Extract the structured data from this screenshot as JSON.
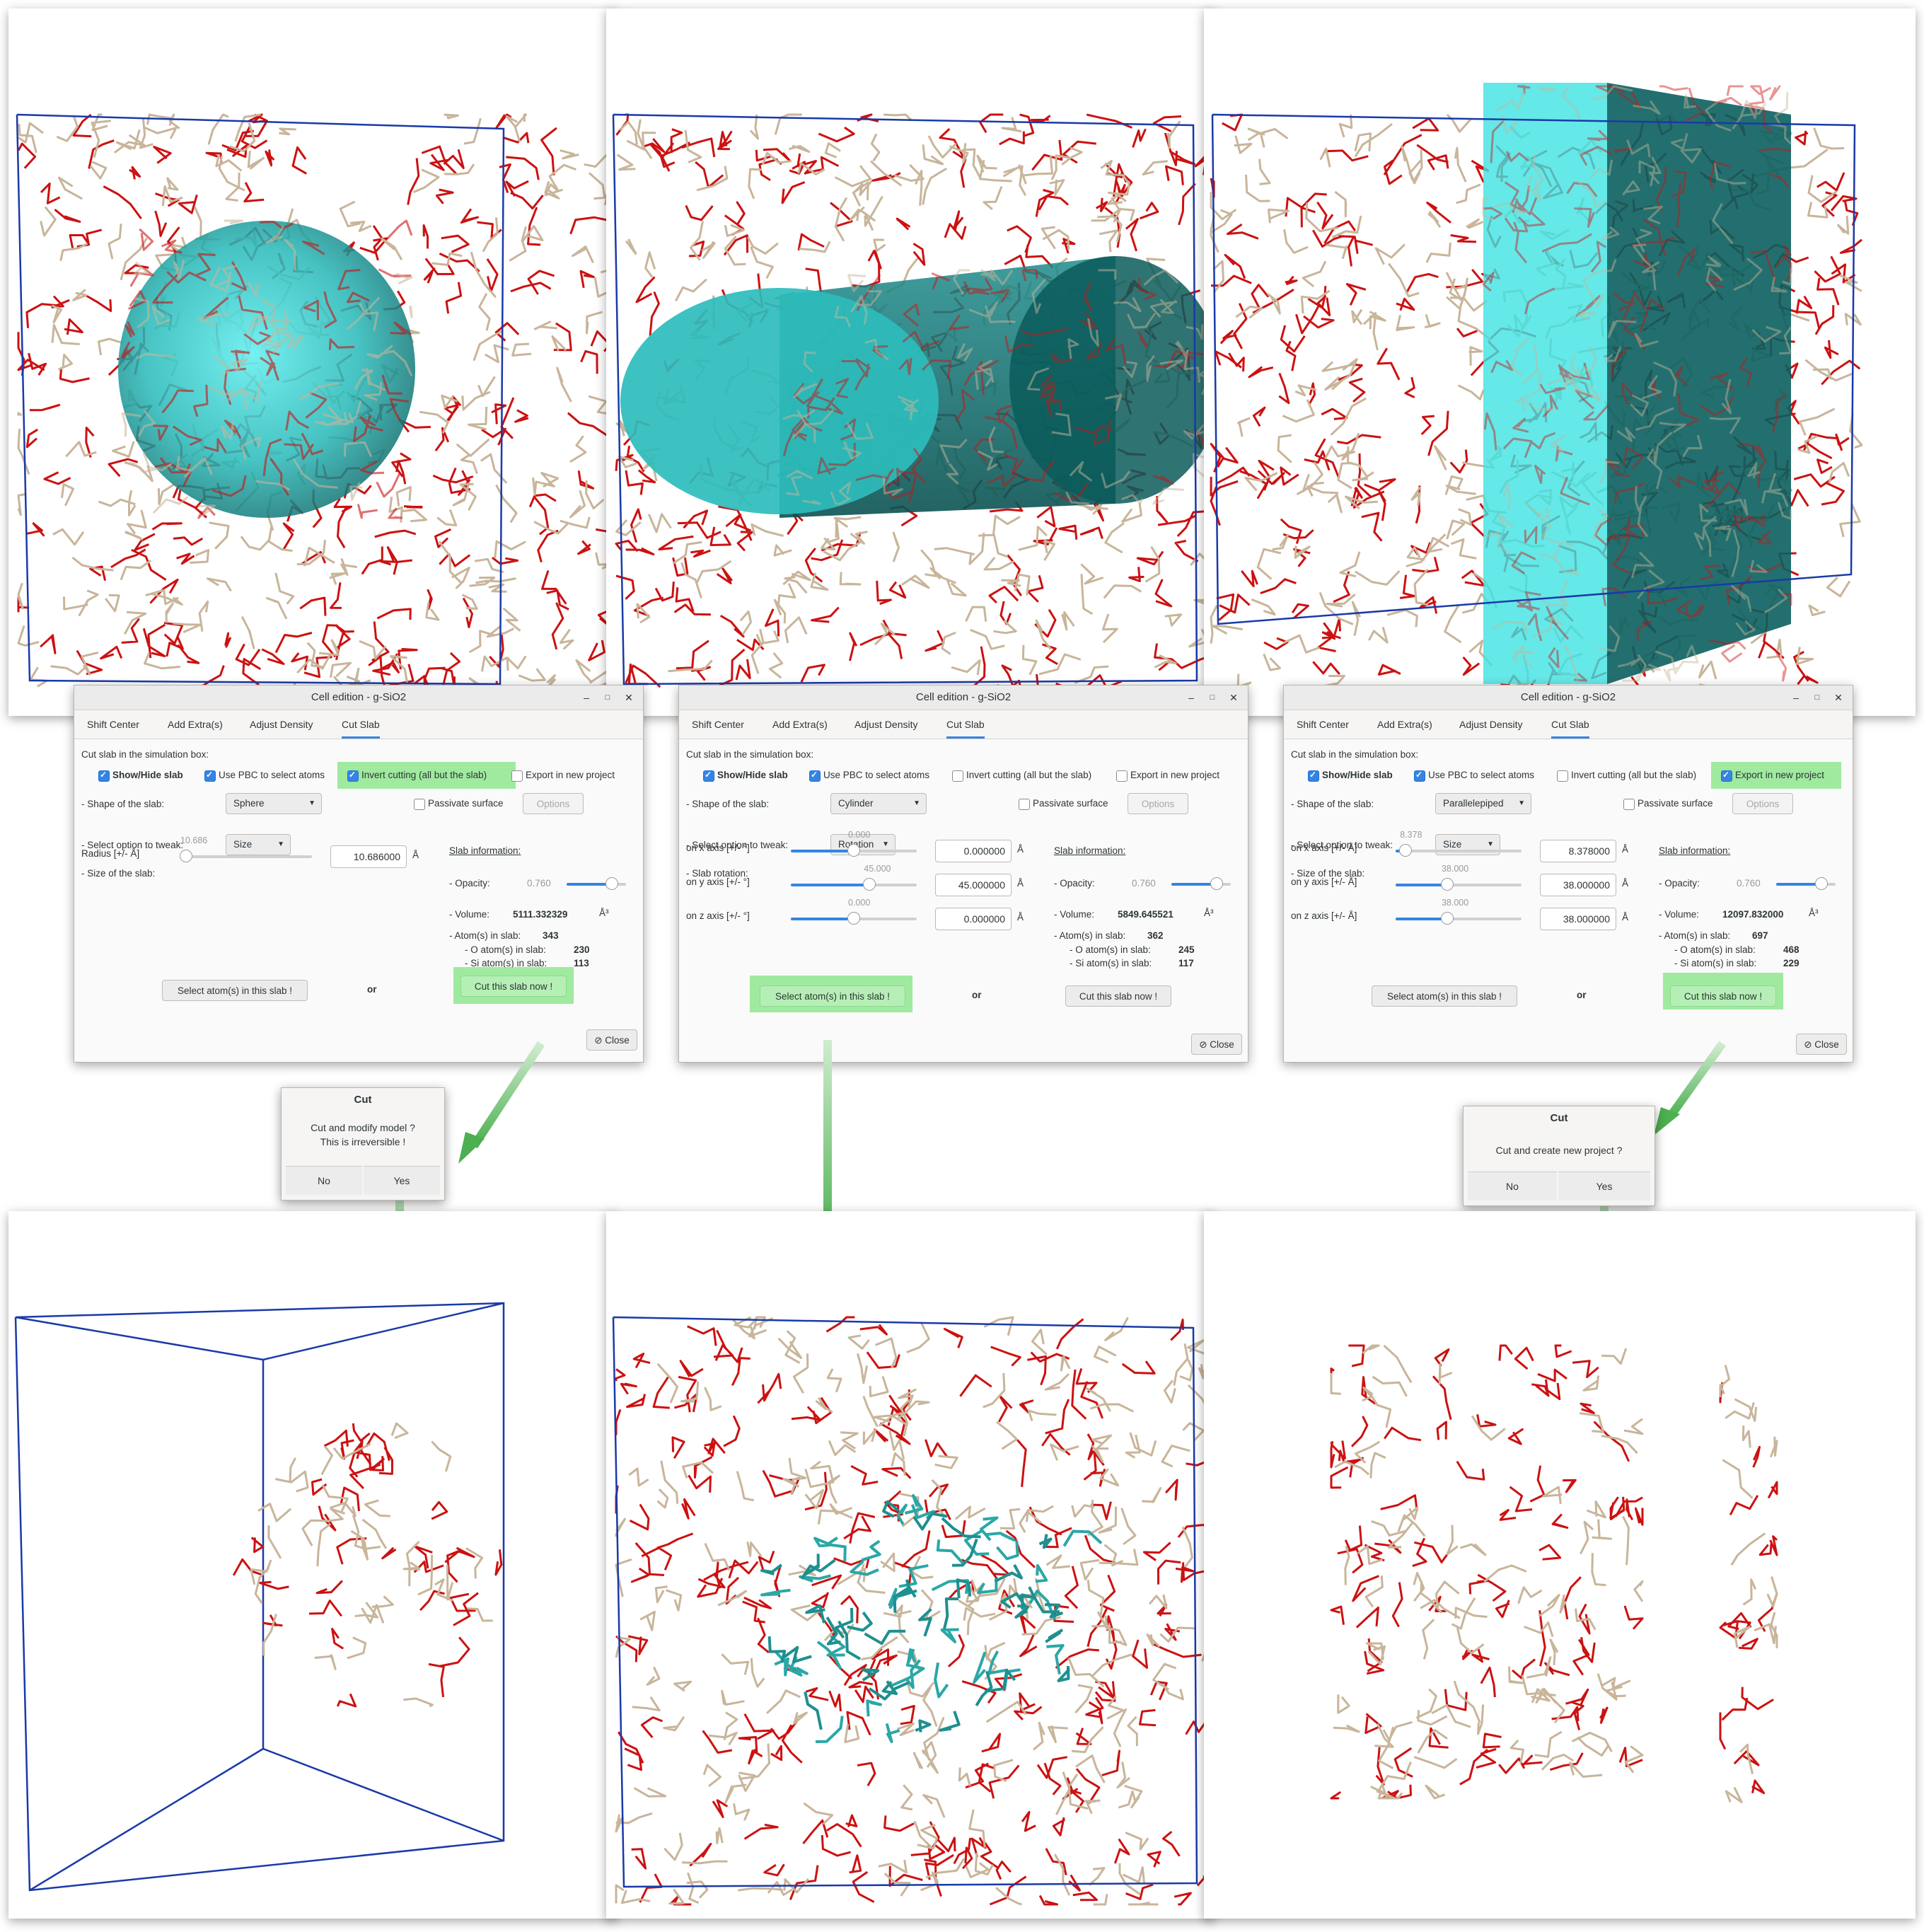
{
  "dialogs": [
    {
      "title": "Cell edition - g-SiO2",
      "tabs": [
        "Shift Center",
        "Add Extra(s)",
        "Adjust Density",
        "Cut Slab"
      ],
      "active_tab": 3,
      "section_label": "Cut slab in the simulation box:",
      "checkboxes": {
        "show_hide": {
          "label": "Show/Hide slab",
          "checked": true
        },
        "use_pbc": {
          "label": "Use PBC to select atoms",
          "checked": true
        },
        "invert": {
          "label": "Invert cutting (all but the slab)",
          "checked": true,
          "highlighted": true
        },
        "export": {
          "label": "Export in new project",
          "checked": false,
          "highlighted": false
        },
        "passivate": {
          "label": "Passivate surface",
          "checked": false
        }
      },
      "options_button": "Options",
      "shape_label": "- Shape of the slab:",
      "shape_value": "Sphere",
      "tweak_label": "- Select option to tweak:",
      "tweak_value": "Size",
      "param_title": "- Size of the slab:",
      "params": [
        {
          "label": "Radius [+/- Å]",
          "slider_text": "10.686",
          "value": "10.686000",
          "unit": "Å",
          "fraction": 0.0
        }
      ],
      "info": {
        "title": "Slab information:",
        "opacity_label": "- Opacity:",
        "opacity_value": "0.760",
        "opacity_fraction": 0.76,
        "volume_label": "- Volume:",
        "volume_value": "5111.332329",
        "volume_unit": "Å³",
        "atoms_label": "- Atom(s) in slab:",
        "atoms_value": "343",
        "o_label": "- O  atom(s) in slab:",
        "o_value": "230",
        "si_label": "- Si atom(s) in slab:",
        "si_value": "113"
      },
      "select_button": "Select atom(s) in this slab !",
      "select_highlighted": false,
      "or_text": "or",
      "cut_button": "Cut this slab now !",
      "cut_highlighted": true,
      "close_button": "Close"
    },
    {
      "title": "Cell edition - g-SiO2",
      "tabs": [
        "Shift Center",
        "Add Extra(s)",
        "Adjust Density",
        "Cut Slab"
      ],
      "active_tab": 3,
      "section_label": "Cut slab in the simulation box:",
      "checkboxes": {
        "show_hide": {
          "label": "Show/Hide slab",
          "checked": true
        },
        "use_pbc": {
          "label": "Use PBC to select atoms",
          "checked": true
        },
        "invert": {
          "label": "Invert cutting (all but the slab)",
          "checked": false,
          "highlighted": false
        },
        "export": {
          "label": "Export in new project",
          "checked": false,
          "highlighted": false
        },
        "passivate": {
          "label": "Passivate surface",
          "checked": false
        }
      },
      "options_button": "Options",
      "shape_label": "- Shape of the slab:",
      "shape_value": "Cylinder",
      "tweak_label": "- Select option to tweak:",
      "tweak_value": "Rotation",
      "param_title": "- Slab rotation:",
      "params": [
        {
          "label": "on x axis [+/- °]",
          "slider_text": "0.000",
          "value": "0.000000",
          "unit": "Å",
          "fraction": 0.5
        },
        {
          "label": "on y axis [+/- °]",
          "slider_text": "45.000",
          "value": "45.000000",
          "unit": "Å",
          "fraction": 0.625
        },
        {
          "label": "on z axis [+/- °]",
          "slider_text": "0.000",
          "value": "0.000000",
          "unit": "Å",
          "fraction": 0.5
        }
      ],
      "info": {
        "title": "Slab information:",
        "opacity_label": "- Opacity:",
        "opacity_value": "0.760",
        "opacity_fraction": 0.76,
        "volume_label": "- Volume:",
        "volume_value": "5849.645521",
        "volume_unit": "Å³",
        "atoms_label": "- Atom(s) in slab:",
        "atoms_value": "362",
        "o_label": "- O  atom(s) in slab:",
        "o_value": "245",
        "si_label": "- Si atom(s) in slab:",
        "si_value": "117"
      },
      "select_button": "Select atom(s) in this slab !",
      "select_highlighted": true,
      "or_text": "or",
      "cut_button": "Cut this slab now !",
      "cut_highlighted": false,
      "close_button": "Close"
    },
    {
      "title": "Cell edition - g-SiO2",
      "tabs": [
        "Shift Center",
        "Add Extra(s)",
        "Adjust Density",
        "Cut Slab"
      ],
      "active_tab": 3,
      "section_label": "Cut slab in the simulation box:",
      "checkboxes": {
        "show_hide": {
          "label": "Show/Hide slab",
          "checked": true
        },
        "use_pbc": {
          "label": "Use PBC to select atoms",
          "checked": true
        },
        "invert": {
          "label": "Invert cutting (all but the slab)",
          "checked": false,
          "highlighted": false
        },
        "export": {
          "label": "Export in new project",
          "checked": true,
          "highlighted": true
        },
        "passivate": {
          "label": "Passivate surface",
          "checked": false
        }
      },
      "options_button": "Options",
      "shape_label": "- Shape of the slab:",
      "shape_value": "Parallelepiped",
      "tweak_label": "- Select option to tweak:",
      "tweak_value": "Size",
      "param_title": "- Size of the slab:",
      "params": [
        {
          "label": "on x axis [+/- Å]",
          "slider_text": "8.378",
          "value": "8.378000",
          "unit": "Å",
          "fraction": 0.08
        },
        {
          "label": "on y axis [+/- Å]",
          "slider_text": "38.000",
          "value": "38.000000",
          "unit": "Å",
          "fraction": 0.41
        },
        {
          "label": "on z axis [+/- Å]",
          "slider_text": "38.000",
          "value": "38.000000",
          "unit": "Å",
          "fraction": 0.41
        }
      ],
      "info": {
        "title": "Slab information:",
        "opacity_label": "- Opacity:",
        "opacity_value": "0.760",
        "opacity_fraction": 0.76,
        "volume_label": "- Volume:",
        "volume_value": "12097.832000",
        "volume_unit": "Å³",
        "atoms_label": "- Atom(s) in slab:",
        "atoms_value": "697",
        "o_label": "- O  atom(s) in slab:",
        "o_value": "468",
        "si_label": "- Si atom(s) in slab:",
        "si_value": "229"
      },
      "select_button": "Select atom(s) in this slab !",
      "select_highlighted": false,
      "or_text": "or",
      "cut_button": "Cut this slab now !",
      "cut_highlighted": true,
      "close_button": "Close"
    }
  ],
  "confirm_dialogs": [
    {
      "title": "Cut",
      "message_lines": [
        "Cut and modify model ?",
        "This is irreversible !"
      ],
      "no": "No",
      "yes": "Yes"
    },
    {
      "title": "Cut",
      "message_lines": [
        "Cut and create new project ?"
      ],
      "no": "No",
      "yes": "Yes"
    }
  ],
  "colors": {
    "accent": "#3584e4",
    "highlight": "#8ee68e",
    "arrow": "#4caf50",
    "slab": "#2ec4c4",
    "cell": "#1a3aa8",
    "oxygen": "#cc1111",
    "silicon": "#c8b59a",
    "selected": "#2aa7a7"
  }
}
